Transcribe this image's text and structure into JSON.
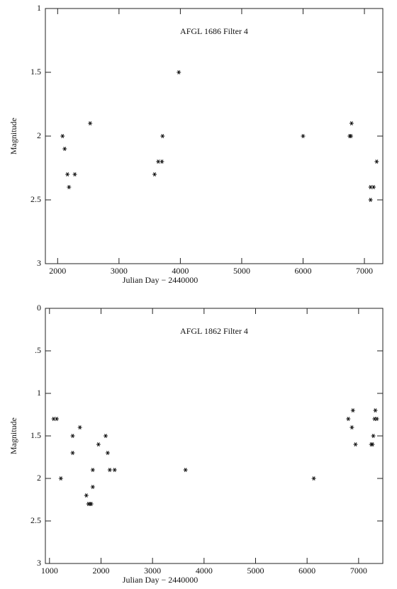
{
  "chart_data": [
    {
      "type": "scatter",
      "title": "AFGL 1686   Filter 4",
      "x_label": "Julian Day − 2440000",
      "y_label": "Magnitude",
      "x": [
        2080,
        2115,
        2160,
        2185,
        2280,
        2530,
        3580,
        3640,
        3700,
        3710,
        3975,
        6000,
        6760,
        6780,
        6790,
        7100,
        7150,
        7100,
        7200
      ],
      "values": [
        2.0,
        2.1,
        2.3,
        2.4,
        2.3,
        1.9,
        2.3,
        2.2,
        2.2,
        2.0,
        1.5,
        2.0,
        2.0,
        2.0,
        1.9,
        2.4,
        2.4,
        2.5,
        2.2
      ],
      "color": "#111111",
      "xlim": [
        1800,
        7300
      ],
      "ylim": [
        3,
        1
      ],
      "xticks": [
        2000,
        3000,
        4000,
        5000,
        6000,
        7000
      ],
      "yticks": [
        1,
        1.5,
        2,
        2.5,
        3
      ]
    },
    {
      "type": "scatter",
      "title": "AFGL 1862   Filter 4",
      "x_label": "Julian Day − 2440000",
      "y_label": "Magnitude",
      "x": [
        1080,
        1140,
        1220,
        1450,
        1450,
        1590,
        1715,
        1755,
        1785,
        1810,
        1840,
        1840,
        1950,
        2090,
        2130,
        2170,
        2265,
        3640,
        6130,
        6800,
        6890,
        6870,
        6940,
        7245,
        7270,
        7285,
        7310,
        7355,
        7325
      ],
      "values": [
        1.3,
        1.3,
        2.0,
        1.5,
        1.7,
        1.4,
        2.2,
        2.3,
        2.3,
        2.3,
        1.9,
        2.1,
        1.6,
        1.5,
        1.7,
        1.9,
        1.9,
        1.9,
        2.0,
        1.3,
        1.2,
        1.4,
        1.6,
        1.6,
        1.6,
        1.5,
        1.3,
        1.3,
        1.2
      ],
      "color": "#111111",
      "xlim": [
        920,
        7470
      ],
      "ylim": [
        3,
        0
      ],
      "xticks": [
        1000,
        2000,
        3000,
        4000,
        5000,
        6000,
        7000
      ],
      "yticks": [
        0,
        {
          "value": 0.5,
          "label": ".5"
        },
        1,
        1.5,
        2,
        2.5,
        3
      ]
    }
  ]
}
